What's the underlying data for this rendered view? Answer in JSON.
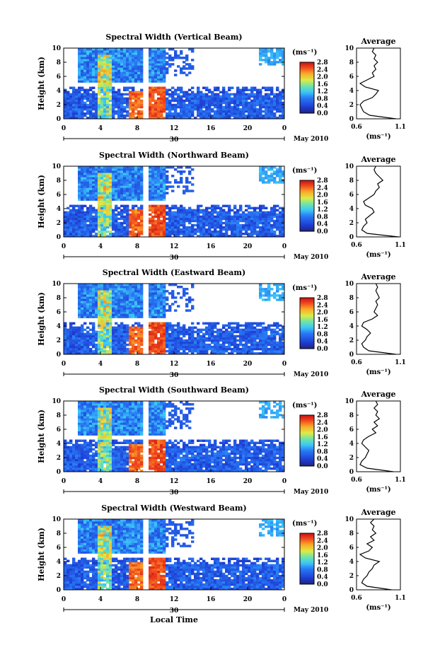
{
  "figure": {
    "bottom_xlabel": "Local Time",
    "date_label": "May 2010",
    "avg_title": "Average",
    "unit_label": "(ms⁻¹)",
    "avg_xlabel": "(ms⁻¹)"
  },
  "chart_data": [
    {
      "type": "heatmap",
      "title": "Spectral Width (Vertical Beam)",
      "ylabel": "Height (km)",
      "xticks": [
        "0",
        "4",
        "8",
        "12",
        "16",
        "20",
        "0"
      ],
      "day_label": "30",
      "yticks": [
        "0",
        "2",
        "4",
        "6",
        "8",
        "10"
      ],
      "ylim": [
        0,
        10
      ],
      "xlim": [
        0,
        24
      ],
      "colorbar": {
        "ticks": [
          "0.0",
          "0.4",
          "0.8",
          "1.2",
          "1.6",
          "2.0",
          "2.4",
          "2.8"
        ],
        "range": [
          0,
          2.8
        ]
      },
      "average": {
        "xlim": [
          0.6,
          1.1
        ],
        "xticks": [
          "0.6",
          "1.1"
        ],
        "yticks": [
          "0",
          "2",
          "4",
          "6",
          "8",
          "10"
        ],
        "heights": [
          0,
          0.5,
          1,
          1.5,
          2,
          2.5,
          3,
          3.5,
          4,
          4.5,
          5,
          5.5,
          6,
          6.5,
          7,
          7.5,
          8,
          8.5,
          9,
          9.5,
          10
        ],
        "values": [
          1.05,
          0.75,
          0.68,
          0.66,
          0.64,
          0.68,
          0.78,
          0.82,
          0.85,
          0.7,
          0.64,
          0.72,
          0.8,
          0.78,
          0.82,
          0.8,
          0.84,
          0.8,
          0.82,
          0.78,
          0.8
        ]
      }
    },
    {
      "type": "heatmap",
      "title": "Spectral Width (Northward Beam)",
      "ylabel": "Height (km)",
      "xticks": [
        "0",
        "4",
        "8",
        "12",
        "16",
        "20",
        "0"
      ],
      "day_label": "30",
      "yticks": [
        "0",
        "2",
        "4",
        "6",
        "8",
        "10"
      ],
      "ylim": [
        0,
        10
      ],
      "xlim": [
        0,
        24
      ],
      "colorbar": {
        "ticks": [
          "0.0",
          "0.4",
          "0.8",
          "1.2",
          "1.6",
          "2.0",
          "2.4",
          "2.8"
        ],
        "range": [
          0,
          2.8
        ]
      },
      "average": {
        "xlim": [
          0.6,
          1.1
        ],
        "xticks": [
          "0.6",
          "1.1"
        ],
        "yticks": [
          "0",
          "2",
          "4",
          "6",
          "8",
          "10"
        ],
        "heights": [
          0,
          0.5,
          1,
          1.5,
          2,
          2.5,
          3,
          3.5,
          4,
          4.5,
          5,
          5.5,
          6,
          6.5,
          7,
          7.5,
          8,
          8.5,
          9,
          9.5,
          10
        ],
        "values": [
          1.08,
          0.72,
          0.66,
          0.68,
          0.72,
          0.7,
          0.75,
          0.8,
          0.78,
          0.7,
          0.68,
          0.74,
          0.8,
          0.82,
          0.86,
          0.84,
          0.9,
          0.86,
          0.82,
          0.8,
          0.82
        ]
      }
    },
    {
      "type": "heatmap",
      "title": "Spectral Width (Eastward Beam)",
      "ylabel": "Height (km)",
      "xticks": [
        "0",
        "4",
        "8",
        "12",
        "16",
        "20",
        "0"
      ],
      "day_label": "30",
      "yticks": [
        "0",
        "2",
        "4",
        "6",
        "8",
        "10"
      ],
      "ylim": [
        0,
        10
      ],
      "xlim": [
        0,
        24
      ],
      "colorbar": {
        "ticks": [
          "0.0",
          "0.4",
          "0.8",
          "1.2",
          "1.6",
          "2.0",
          "2.4",
          "2.8"
        ],
        "range": [
          0,
          2.8
        ]
      },
      "average": {
        "xlim": [
          0.6,
          1.1
        ],
        "xticks": [
          "0.6",
          "1.1"
        ],
        "yticks": [
          "0",
          "2",
          "4",
          "6",
          "8",
          "10"
        ],
        "heights": [
          0,
          0.5,
          1,
          1.5,
          2,
          2.5,
          3,
          3.5,
          4,
          4.5,
          5,
          5.5,
          6,
          6.5,
          7,
          7.5,
          8,
          8.5,
          9,
          9.5,
          10
        ],
        "values": [
          1.05,
          0.74,
          0.68,
          0.66,
          0.7,
          0.72,
          0.76,
          0.72,
          0.66,
          0.68,
          0.78,
          0.84,
          0.8,
          0.82,
          0.84,
          0.82,
          0.86,
          0.84,
          0.82,
          0.84,
          0.82
        ]
      }
    },
    {
      "type": "heatmap",
      "title": "Spectral Width (Southward Beam)",
      "ylabel": "Height (km)",
      "xticks": [
        "0",
        "4",
        "8",
        "12",
        "16",
        "20",
        "0"
      ],
      "day_label": "30",
      "yticks": [
        "0",
        "2",
        "4",
        "6",
        "8",
        "10"
      ],
      "ylim": [
        0,
        10
      ],
      "xlim": [
        0,
        24
      ],
      "colorbar": {
        "ticks": [
          "0.0",
          "0.4",
          "0.8",
          "1.2",
          "1.6",
          "2.0",
          "2.4",
          "2.8"
        ],
        "range": [
          0,
          2.8
        ]
      },
      "average": {
        "xlim": [
          0.6,
          1.1
        ],
        "xticks": [
          "0.6",
          "1.1"
        ],
        "yticks": [
          "0",
          "2",
          "4",
          "6",
          "8",
          "10"
        ],
        "heights": [
          0,
          0.5,
          1,
          1.5,
          2,
          2.5,
          3,
          3.5,
          4,
          4.5,
          5,
          5.5,
          6,
          6.5,
          7,
          7.5,
          8,
          8.5,
          9,
          9.5,
          10
        ],
        "values": [
          1.02,
          0.72,
          0.64,
          0.66,
          0.7,
          0.72,
          0.74,
          0.7,
          0.66,
          0.68,
          0.74,
          0.82,
          0.78,
          0.84,
          0.8,
          0.86,
          0.82,
          0.84,
          0.8,
          0.84,
          0.82
        ]
      }
    },
    {
      "type": "heatmap",
      "title": "Spectral Width (Westward Beam)",
      "ylabel": "Height (km)",
      "xticks": [
        "0",
        "4",
        "8",
        "12",
        "16",
        "20",
        "0"
      ],
      "day_label": "30",
      "yticks": [
        "0",
        "2",
        "4",
        "6",
        "8",
        "10"
      ],
      "ylim": [
        0,
        10
      ],
      "xlim": [
        0,
        24
      ],
      "colorbar": {
        "ticks": [
          "0.0",
          "0.4",
          "0.8",
          "1.2",
          "1.6",
          "2.0",
          "2.4",
          "2.8"
        ],
        "range": [
          0,
          2.8
        ]
      },
      "average": {
        "xlim": [
          0.6,
          1.1
        ],
        "xticks": [
          "0.6",
          "1.1"
        ],
        "yticks": [
          "0",
          "2",
          "4",
          "6",
          "8",
          "10"
        ],
        "heights": [
          0,
          0.5,
          1,
          1.5,
          2,
          2.5,
          3,
          3.5,
          4,
          4.5,
          5,
          5.5,
          6,
          6.5,
          7,
          7.5,
          8,
          8.5,
          9,
          9.5,
          10
        ],
        "values": [
          1.0,
          0.72,
          0.66,
          0.68,
          0.72,
          0.74,
          0.78,
          0.8,
          0.86,
          0.7,
          0.64,
          0.74,
          0.78,
          0.72,
          0.8,
          0.76,
          0.82,
          0.78,
          0.8,
          0.76,
          0.8
        ]
      }
    }
  ]
}
